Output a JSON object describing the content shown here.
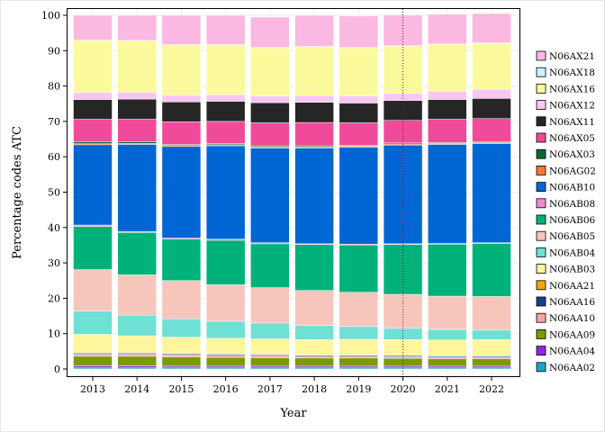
{
  "chart_data": {
    "type": "bar",
    "stacked": true,
    "xlabel": "Year",
    "ylabel": "Percentage codes ATC",
    "ylim": [
      0,
      100
    ],
    "yticks": [
      0,
      10,
      20,
      30,
      40,
      50,
      60,
      70,
      80,
      90,
      100
    ],
    "categories": [
      "2013",
      "2014",
      "2015",
      "2016",
      "2017",
      "2018",
      "2019",
      "2020",
      "2021",
      "2022"
    ],
    "reference_line": {
      "x": "2020",
      "color": "#8b1a1a",
      "style": "dotted"
    },
    "legend_placement": "right",
    "series": [
      {
        "name": "N06AA02",
        "color": "#1fa3c4",
        "values": [
          0.3,
          0.3,
          0.3,
          0.3,
          0.3,
          0.3,
          0.3,
          0.3,
          0.3,
          0.3
        ]
      },
      {
        "name": "N06AA04",
        "color": "#8b2be2",
        "values": [
          0.6,
          0.6,
          0.5,
          0.5,
          0.5,
          0.5,
          0.5,
          0.5,
          0.5,
          0.5
        ]
      },
      {
        "name": "N06AA09",
        "color": "#7a9a00",
        "values": [
          2.7,
          2.7,
          2.6,
          2.5,
          2.4,
          2.3,
          2.3,
          2.2,
          2.1,
          2.1
        ]
      },
      {
        "name": "N06AA10",
        "color": "#f4a6a6",
        "values": [
          0.6,
          0.6,
          0.6,
          0.6,
          0.5,
          0.5,
          0.5,
          0.5,
          0.5,
          0.5
        ]
      },
      {
        "name": "N06AA16",
        "color": "#1a3f8a",
        "values": [
          0.3,
          0.3,
          0.3,
          0.3,
          0.3,
          0.3,
          0.3,
          0.3,
          0.3,
          0.3
        ]
      },
      {
        "name": "N06AA21",
        "color": "#f0a500",
        "values": [
          0.1,
          0.1,
          0.1,
          0.1,
          0.1,
          0.1,
          0.1,
          0.1,
          0.1,
          0.1
        ]
      },
      {
        "name": "N06AB03",
        "color": "#fff59d",
        "values": [
          5.2,
          4.8,
          4.6,
          4.4,
          4.4,
          4.3,
          4.4,
          4.4,
          4.4,
          4.5
        ]
      },
      {
        "name": "N06AB04",
        "color": "#6ee0d4",
        "values": [
          6.6,
          5.8,
          5.2,
          4.8,
          4.5,
          4.0,
          3.6,
          3.2,
          3.0,
          2.7
        ]
      },
      {
        "name": "N06AB05",
        "color": "#f6c6bc",
        "values": [
          11.7,
          11.4,
          10.8,
          10.3,
          10.0,
          9.9,
          9.7,
          9.6,
          9.4,
          9.5
        ]
      },
      {
        "name": "N06AB06",
        "color": "#00b27a",
        "values": [
          12.2,
          12.0,
          11.7,
          12.6,
          12.4,
          13.0,
          13.4,
          14.1,
          14.7,
          15.0
        ]
      },
      {
        "name": "N06AB08",
        "color": "#f08ad0",
        "values": [
          0.4,
          0.3,
          0.3,
          0.3,
          0.3,
          0.2,
          0.2,
          0.2,
          0.2,
          0.2
        ]
      },
      {
        "name": "N06AB10",
        "color": "#0066d4",
        "values": [
          22.7,
          24.6,
          25.9,
          26.4,
          26.8,
          27.1,
          27.4,
          27.9,
          28.0,
          28.0
        ]
      },
      {
        "name": "N06AG02",
        "color": "#f07a30",
        "values": [
          0.3,
          0.3,
          0.3,
          0.3,
          0.3,
          0.3,
          0.3,
          0.3,
          0.3,
          0.3
        ]
      },
      {
        "name": "N06AX03",
        "color": "#006b2e",
        "values": [
          0.5,
          0.4,
          0.3,
          0.3,
          0.3,
          0.3,
          0.2,
          0.3,
          0.2,
          0.2
        ]
      },
      {
        "name": "N06AX05",
        "color": "#f04a9a",
        "values": [
          6.4,
          6.4,
          6.4,
          6.3,
          6.5,
          6.6,
          6.4,
          6.4,
          6.6,
          6.6
        ]
      },
      {
        "name": "N06AX11",
        "color": "#262626",
        "values": [
          5.6,
          5.7,
          5.6,
          5.7,
          5.7,
          5.7,
          5.6,
          5.6,
          5.6,
          5.7
        ]
      },
      {
        "name": "N06AX12",
        "color": "#f8c6f2",
        "values": [
          2.0,
          1.9,
          1.9,
          1.9,
          1.9,
          1.9,
          2.0,
          2.0,
          2.4,
          2.6
        ]
      },
      {
        "name": "N06AX16",
        "color": "#fafa9c",
        "values": [
          14.7,
          14.6,
          14.2,
          14.0,
          13.6,
          13.8,
          13.6,
          13.4,
          13.2,
          13.0
        ]
      },
      {
        "name": "N06AX18",
        "color": "#c8f0ff",
        "values": [
          0.1,
          0.1,
          0.1,
          0.1,
          0.1,
          0.1,
          0.1,
          0.1,
          0.1,
          0.1
        ]
      },
      {
        "name": "N06AX21",
        "color": "#fbb8e0",
        "values": [
          7.0,
          7.1,
          8.3,
          8.3,
          8.6,
          8.8,
          8.9,
          8.7,
          8.4,
          8.3
        ]
      }
    ]
  }
}
